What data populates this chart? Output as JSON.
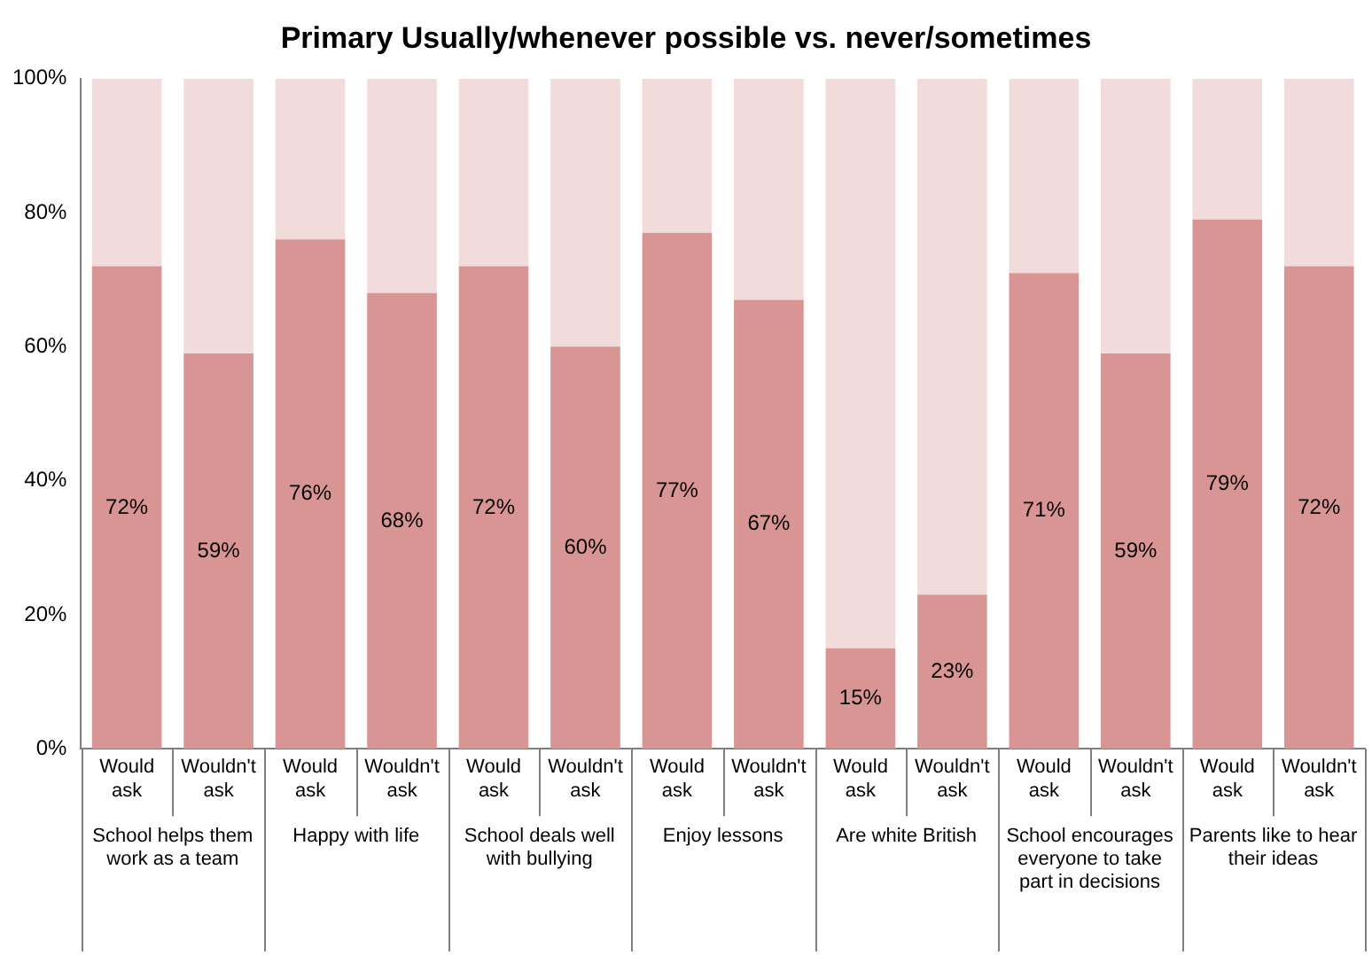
{
  "chart_data": {
    "type": "bar",
    "title": "Primary Usually/whenever possible vs. never/sometimes",
    "stacked": true,
    "grid": false,
    "legend": false,
    "categories": [
      "Would ask",
      "Wouldn't ask",
      "Would ask",
      "Wouldn't ask",
      "Would ask",
      "Wouldn't ask",
      "Would ask",
      "Wouldn't ask",
      "Would ask",
      "Wouldn't ask",
      "Would ask",
      "Wouldn't ask",
      "Would ask",
      "Wouldn't ask"
    ],
    "series": [
      {
        "color": "#d99594",
        "values": [
          72,
          59,
          76,
          68,
          72,
          60,
          77,
          67,
          15,
          23,
          71,
          59,
          79,
          72
        ],
        "value_labels": [
          "72%",
          "59%",
          "76%",
          "68%",
          "72%",
          "60%",
          "77%",
          "67%",
          "15%",
          "23%",
          "71%",
          "59%",
          "79%",
          "72%"
        ]
      },
      {
        "color": "#f2dcdb",
        "values": [
          28,
          41,
          24,
          32,
          28,
          40,
          23,
          33,
          85,
          77,
          29,
          41,
          21,
          28
        ]
      }
    ],
    "ylim": [
      0,
      100
    ],
    "yticks": [
      {
        "value": 0,
        "label": "0%"
      },
      {
        "value": 20,
        "label": "20%"
      },
      {
        "value": 40,
        "label": "40%"
      },
      {
        "value": 60,
        "label": "60%"
      },
      {
        "value": 80,
        "label": "80%"
      },
      {
        "value": 100,
        "label": "100%"
      }
    ],
    "annotations": [
      "School helps them work as a team",
      "Happy with life",
      "School deals well with bullying",
      "Enjoy lessons",
      "Are white British",
      "School encourages everyone to take part in decisions",
      "Parents like to hear their ideas"
    ]
  }
}
